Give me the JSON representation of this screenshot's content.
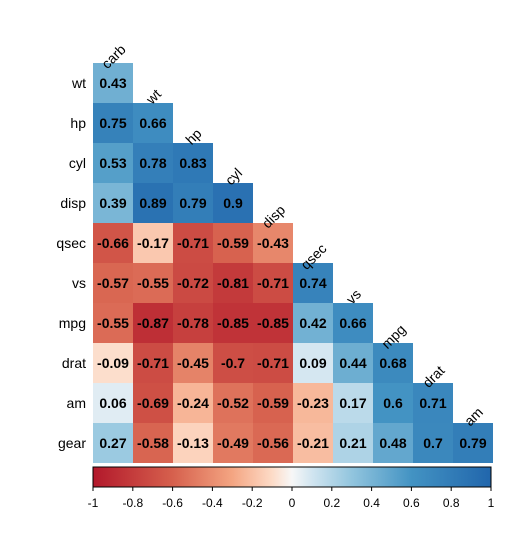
{
  "chart_data": {
    "type": "heatmap",
    "variables": [
      "carb",
      "wt",
      "hp",
      "cyl",
      "disp",
      "qsec",
      "vs",
      "mpg",
      "drat",
      "am",
      "gear"
    ],
    "rows": [
      "wt",
      "hp",
      "cyl",
      "disp",
      "qsec",
      "vs",
      "mpg",
      "drat",
      "am",
      "gear"
    ],
    "columns": [
      "carb",
      "wt",
      "hp",
      "cyl",
      "disp",
      "qsec",
      "vs",
      "mpg",
      "drat",
      "am"
    ],
    "values": [
      [
        "0.43"
      ],
      [
        "0.75",
        "0.66"
      ],
      [
        "0.53",
        "0.78",
        "0.83"
      ],
      [
        "0.39",
        "0.89",
        "0.79",
        "0.9"
      ],
      [
        "-0.66",
        "-0.17",
        "-0.71",
        "-0.59",
        "-0.43"
      ],
      [
        "-0.57",
        "-0.55",
        "-0.72",
        "-0.81",
        "-0.71",
        "0.74"
      ],
      [
        "-0.55",
        "-0.87",
        "-0.78",
        "-0.85",
        "-0.85",
        "0.42",
        "0.66"
      ],
      [
        "-0.09",
        "-0.71",
        "-0.45",
        "-0.7",
        "-0.71",
        "0.09",
        "0.44",
        "0.68"
      ],
      [
        "0.06",
        "-0.69",
        "-0.24",
        "-0.52",
        "-0.59",
        "-0.23",
        "0.17",
        "0.6",
        "0.71"
      ],
      [
        "0.27",
        "-0.58",
        "-0.13",
        "-0.49",
        "-0.56",
        "-0.21",
        "0.21",
        "0.48",
        "0.7",
        "0.79"
      ]
    ],
    "colorbar": {
      "range": [
        -1,
        1
      ],
      "tick_labels": [
        "-1",
        "-0.8",
        "-0.6",
        "-0.4",
        "-0.2",
        "0",
        "0.2",
        "0.4",
        "0.6",
        "0.8",
        "1"
      ],
      "colors": {
        "negative": "#B2182B",
        "zero": "#F7F7F7",
        "positive": "#2166AC"
      }
    },
    "layout": "lower-triangle",
    "title": "",
    "xlabel": "",
    "ylabel": ""
  }
}
